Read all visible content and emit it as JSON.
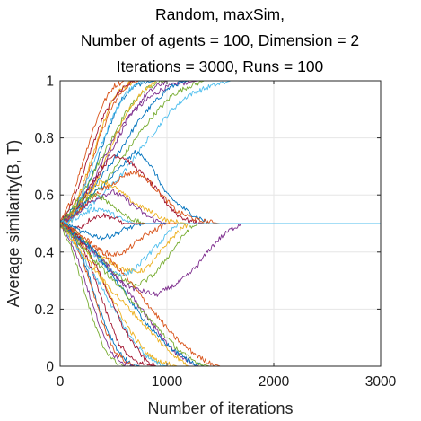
{
  "chart_data": {
    "type": "line",
    "title_lines": [
      "Random, maxSim,",
      "Number of agents = 100, Dimension = 2",
      "Iterations = 3000, Runs = 100"
    ],
    "xlabel": "Number of iterations",
    "ylabel": "Average similarity(B, T)",
    "xlim": [
      0,
      3000
    ],
    "ylim": [
      0,
      1
    ],
    "xticks": [
      0,
      1000,
      2000,
      3000
    ],
    "yticks": [
      0,
      0.2,
      0.4,
      0.6,
      0.8,
      1
    ],
    "xtick_labels": [
      "0",
      "1000",
      "2000",
      "3000"
    ],
    "ytick_labels": [
      "0",
      "0.2",
      "0.4",
      "0.6",
      "0.8",
      "1"
    ],
    "grid": true,
    "legend": "none",
    "start_value": 0.5,
    "run_count": 100,
    "converged_values": [
      0,
      0.5,
      1
    ],
    "colors": [
      "#0072BD",
      "#D95319",
      "#EDB120",
      "#7E2F8E",
      "#77AC30",
      "#4DBEEE",
      "#A2142F"
    ],
    "series": [
      {
        "x": [
          0,
          80,
          150,
          250,
          350,
          450,
          550,
          650,
          750,
          900,
          3000
        ],
        "y": [
          0.5,
          0.52,
          0.55,
          0.62,
          0.72,
          0.83,
          0.92,
          0.97,
          0.99,
          1.0,
          1.0
        ]
      },
      {
        "x": [
          0,
          80,
          150,
          250,
          350,
          450,
          550,
          650,
          750,
          900,
          3000
        ],
        "y": [
          0.5,
          0.51,
          0.56,
          0.66,
          0.78,
          0.88,
          0.95,
          0.99,
          1.0,
          1.0,
          1.0
        ]
      },
      {
        "x": [
          0,
          100,
          200,
          300,
          400,
          500,
          600,
          700,
          800,
          3000
        ],
        "y": [
          0.5,
          0.54,
          0.62,
          0.73,
          0.85,
          0.94,
          0.98,
          1.0,
          1.0,
          1.0
        ]
      },
      {
        "x": [
          0,
          100,
          200,
          300,
          400,
          500,
          650,
          800,
          950,
          1100,
          1300,
          3000
        ],
        "y": [
          0.5,
          0.53,
          0.58,
          0.64,
          0.72,
          0.8,
          0.88,
          0.93,
          0.97,
          0.99,
          1.0,
          1.0
        ]
      },
      {
        "x": [
          0,
          100,
          200,
          300,
          400,
          500,
          600,
          700,
          800,
          900,
          1000,
          3000
        ],
        "y": [
          0.5,
          0.55,
          0.6,
          0.67,
          0.74,
          0.81,
          0.88,
          0.93,
          0.97,
          0.99,
          1.0,
          1.0
        ]
      },
      {
        "x": [
          0,
          100,
          200,
          300,
          400,
          500,
          600,
          700,
          800,
          3000
        ],
        "y": [
          0.5,
          0.52,
          0.6,
          0.7,
          0.79,
          0.88,
          0.95,
          0.99,
          1.0,
          1.0
        ]
      },
      {
        "x": [
          0,
          100,
          200,
          300,
          400,
          500,
          600,
          700,
          3000
        ],
        "y": [
          0.5,
          0.56,
          0.66,
          0.77,
          0.87,
          0.94,
          0.98,
          1.0,
          1.0
        ]
      },
      {
        "x": [
          0,
          100,
          200,
          300,
          400,
          500,
          600,
          700,
          800,
          900,
          1000,
          1100,
          1200,
          3000
        ],
        "y": [
          0.5,
          0.54,
          0.58,
          0.62,
          0.67,
          0.72,
          0.78,
          0.84,
          0.89,
          0.93,
          0.97,
          0.99,
          1.0,
          1.0
        ]
      },
      {
        "x": [
          0,
          100,
          200,
          300,
          400,
          500,
          600,
          3000
        ],
        "y": [
          0.5,
          0.58,
          0.7,
          0.82,
          0.92,
          0.98,
          1.0,
          1.0
        ]
      },
      {
        "x": [
          0,
          100,
          200,
          300,
          400,
          500,
          600,
          700,
          800,
          900,
          3000
        ],
        "y": [
          0.5,
          0.51,
          0.55,
          0.62,
          0.7,
          0.79,
          0.87,
          0.93,
          0.97,
          1.0,
          1.0
        ]
      },
      {
        "x": [
          0,
          100,
          200,
          300,
          400,
          500,
          600,
          700,
          800,
          900,
          1000,
          3000
        ],
        "y": [
          0.5,
          0.53,
          0.57,
          0.63,
          0.7,
          0.77,
          0.84,
          0.9,
          0.95,
          0.98,
          1.0,
          1.0
        ]
      },
      {
        "x": [
          0,
          150,
          300,
          450,
          600,
          750,
          900,
          1050,
          1200,
          1350,
          3000
        ],
        "y": [
          0.5,
          0.54,
          0.6,
          0.66,
          0.74,
          0.82,
          0.89,
          0.95,
          0.98,
          1.0,
          1.0
        ]
      },
      {
        "x": [
          0,
          150,
          300,
          450,
          600,
          750,
          900,
          1050,
          1200,
          1400,
          1600,
          3000
        ],
        "y": [
          0.5,
          0.53,
          0.57,
          0.62,
          0.68,
          0.76,
          0.83,
          0.9,
          0.95,
          0.98,
          1.0,
          1.0
        ]
      },
      {
        "x": [
          0,
          100,
          200,
          300,
          400,
          500,
          600,
          700,
          800,
          900,
          1000,
          1100,
          1200,
          1350,
          1500,
          3000
        ],
        "y": [
          0.5,
          0.53,
          0.58,
          0.64,
          0.7,
          0.74,
          0.73,
          0.7,
          0.66,
          0.62,
          0.57,
          0.53,
          0.51,
          0.5,
          0.5,
          0.5
        ]
      },
      {
        "x": [
          0,
          100,
          200,
          300,
          400,
          500,
          600,
          700,
          800,
          900,
          1000,
          1200,
          1400,
          3000
        ],
        "y": [
          0.5,
          0.52,
          0.56,
          0.6,
          0.63,
          0.67,
          0.71,
          0.75,
          0.73,
          0.67,
          0.6,
          0.54,
          0.5,
          0.5
        ]
      },
      {
        "x": [
          0,
          100,
          200,
          300,
          400,
          500,
          600,
          700,
          800,
          900,
          1000,
          1100,
          1300,
          1500,
          3000
        ],
        "y": [
          0.5,
          0.52,
          0.55,
          0.59,
          0.62,
          0.64,
          0.67,
          0.68,
          0.66,
          0.62,
          0.58,
          0.54,
          0.51,
          0.5,
          0.5
        ]
      },
      {
        "x": [
          0,
          100,
          200,
          300,
          400,
          500,
          600,
          700,
          800,
          900,
          1000,
          1200,
          3000
        ],
        "y": [
          0.5,
          0.53,
          0.58,
          0.63,
          0.65,
          0.63,
          0.6,
          0.57,
          0.55,
          0.53,
          0.51,
          0.5,
          0.5
        ]
      },
      {
        "x": [
          0,
          100,
          200,
          300,
          400,
          500,
          600,
          700,
          800,
          900,
          1000,
          3000
        ],
        "y": [
          0.5,
          0.52,
          0.55,
          0.58,
          0.6,
          0.61,
          0.59,
          0.56,
          0.53,
          0.51,
          0.5,
          0.5
        ]
      },
      {
        "x": [
          0,
          100,
          200,
          300,
          400,
          500,
          600,
          700,
          800,
          3000
        ],
        "y": [
          0.5,
          0.54,
          0.58,
          0.6,
          0.59,
          0.56,
          0.53,
          0.51,
          0.5,
          0.5
        ]
      },
      {
        "x": [
          0,
          100,
          200,
          300,
          400,
          500,
          600,
          700,
          3000
        ],
        "y": [
          0.5,
          0.51,
          0.53,
          0.55,
          0.55,
          0.53,
          0.51,
          0.5,
          0.5
        ]
      },
      {
        "x": [
          0,
          100,
          200,
          300,
          400,
          500,
          600,
          3000
        ],
        "y": [
          0.5,
          0.48,
          0.49,
          0.52,
          0.53,
          0.52,
          0.5,
          0.5
        ]
      },
      {
        "x": [
          0,
          100,
          200,
          300,
          400,
          500,
          600,
          700,
          800,
          3000
        ],
        "y": [
          0.5,
          0.49,
          0.47,
          0.46,
          0.45,
          0.46,
          0.48,
          0.49,
          0.5,
          0.5
        ]
      },
      {
        "x": [
          0,
          100,
          200,
          300,
          400,
          500,
          600,
          700,
          800,
          900,
          1000,
          3000
        ],
        "y": [
          0.5,
          0.48,
          0.45,
          0.42,
          0.4,
          0.39,
          0.4,
          0.43,
          0.46,
          0.48,
          0.5,
          0.5
        ]
      },
      {
        "x": [
          0,
          100,
          200,
          300,
          400,
          500,
          600,
          700,
          800,
          900,
          1000,
          1100,
          1200,
          3000
        ],
        "y": [
          0.5,
          0.47,
          0.44,
          0.41,
          0.38,
          0.36,
          0.34,
          0.33,
          0.34,
          0.38,
          0.43,
          0.47,
          0.5,
          0.5
        ]
      },
      {
        "x": [
          0,
          100,
          200,
          300,
          400,
          500,
          600,
          700,
          800,
          900,
          1000,
          1100,
          1200,
          1300,
          1400,
          1500,
          1600,
          1700,
          3000
        ],
        "y": [
          0.5,
          0.47,
          0.43,
          0.4,
          0.36,
          0.32,
          0.29,
          0.27,
          0.26,
          0.25,
          0.27,
          0.29,
          0.32,
          0.36,
          0.41,
          0.45,
          0.48,
          0.5,
          0.5
        ]
      },
      {
        "x": [
          0,
          100,
          200,
          300,
          400,
          500,
          600,
          700,
          800,
          900,
          1000,
          1100,
          1200,
          1300,
          3000
        ],
        "y": [
          0.5,
          0.48,
          0.45,
          0.41,
          0.37,
          0.33,
          0.3,
          0.28,
          0.3,
          0.33,
          0.38,
          0.43,
          0.48,
          0.5,
          0.5
        ]
      },
      {
        "x": [
          0,
          100,
          200,
          300,
          400,
          500,
          600,
          700,
          800,
          900,
          1000,
          1100,
          3000
        ],
        "y": [
          0.5,
          0.47,
          0.44,
          0.4,
          0.36,
          0.33,
          0.32,
          0.34,
          0.38,
          0.42,
          0.46,
          0.5,
          0.5
        ]
      },
      {
        "x": [
          0,
          80,
          150,
          250,
          350,
          450,
          550,
          650,
          750,
          900,
          3000
        ],
        "y": [
          0.5,
          0.48,
          0.45,
          0.38,
          0.28,
          0.17,
          0.08,
          0.03,
          0.01,
          0.0,
          0.0
        ]
      },
      {
        "x": [
          0,
          80,
          150,
          250,
          350,
          450,
          550,
          650,
          750,
          3000
        ],
        "y": [
          0.5,
          0.49,
          0.44,
          0.34,
          0.22,
          0.12,
          0.05,
          0.01,
          0.0,
          0.0
        ]
      },
      {
        "x": [
          0,
          100,
          200,
          300,
          400,
          500,
          600,
          700,
          800,
          3000
        ],
        "y": [
          0.5,
          0.46,
          0.38,
          0.27,
          0.15,
          0.06,
          0.02,
          0.0,
          0.0,
          0.0
        ]
      },
      {
        "x": [
          0,
          100,
          200,
          300,
          400,
          500,
          600,
          700,
          800,
          900,
          1000,
          1100,
          3000
        ],
        "y": [
          0.5,
          0.47,
          0.43,
          0.37,
          0.3,
          0.23,
          0.16,
          0.1,
          0.05,
          0.02,
          0.01,
          0.0,
          0.0
        ]
      },
      {
        "x": [
          0,
          100,
          200,
          300,
          400,
          500,
          600,
          700,
          800,
          900,
          1000,
          1100,
          1200,
          1300,
          3000
        ],
        "y": [
          0.5,
          0.47,
          0.44,
          0.41,
          0.37,
          0.33,
          0.28,
          0.23,
          0.18,
          0.13,
          0.08,
          0.04,
          0.02,
          0.0,
          0.0
        ]
      },
      {
        "x": [
          0,
          100,
          200,
          300,
          400,
          500,
          600,
          3000
        ],
        "y": [
          0.5,
          0.42,
          0.3,
          0.17,
          0.07,
          0.02,
          0.0,
          0.0
        ]
      },
      {
        "x": [
          0,
          100,
          200,
          300,
          400,
          500,
          600,
          700,
          800,
          900,
          1000,
          3000
        ],
        "y": [
          0.5,
          0.45,
          0.39,
          0.33,
          0.27,
          0.2,
          0.14,
          0.08,
          0.04,
          0.01,
          0.0,
          0.0
        ]
      },
      {
        "x": [
          0,
          100,
          200,
          300,
          400,
          500,
          600,
          700,
          800,
          900,
          3000
        ],
        "y": [
          0.5,
          0.48,
          0.44,
          0.38,
          0.3,
          0.21,
          0.13,
          0.07,
          0.02,
          0.0,
          0.0
        ]
      },
      {
        "x": [
          0,
          150,
          300,
          450,
          600,
          750,
          900,
          1050,
          1200,
          1350,
          3000
        ],
        "y": [
          0.5,
          0.46,
          0.41,
          0.34,
          0.26,
          0.18,
          0.11,
          0.06,
          0.02,
          0.0,
          0.0
        ]
      },
      {
        "x": [
          0,
          150,
          300,
          450,
          600,
          750,
          900,
          1050,
          1200,
          1350,
          1500,
          3000
        ],
        "y": [
          0.5,
          0.47,
          0.43,
          0.38,
          0.32,
          0.25,
          0.18,
          0.11,
          0.06,
          0.02,
          0.0,
          0.0
        ]
      },
      {
        "x": [
          0,
          100,
          200,
          300,
          400,
          500,
          600,
          700,
          800,
          900,
          1000,
          1100,
          1200,
          3000
        ],
        "y": [
          0.5,
          0.45,
          0.4,
          0.35,
          0.3,
          0.26,
          0.22,
          0.18,
          0.14,
          0.1,
          0.06,
          0.03,
          0.0,
          0.0
        ]
      },
      {
        "x": [
          0,
          100,
          200,
          300,
          400,
          500,
          600,
          700,
          3000
        ],
        "y": [
          0.5,
          0.44,
          0.34,
          0.22,
          0.11,
          0.04,
          0.01,
          0.0,
          0.0
        ]
      },
      {
        "x": [
          0,
          100,
          200,
          300,
          400,
          500,
          600,
          700,
          800,
          900,
          1000,
          1100,
          1200,
          1300,
          1400,
          3000
        ],
        "y": [
          0.5,
          0.46,
          0.42,
          0.38,
          0.34,
          0.3,
          0.26,
          0.22,
          0.18,
          0.14,
          0.1,
          0.06,
          0.03,
          0.01,
          0.0,
          0.0
        ]
      }
    ]
  }
}
